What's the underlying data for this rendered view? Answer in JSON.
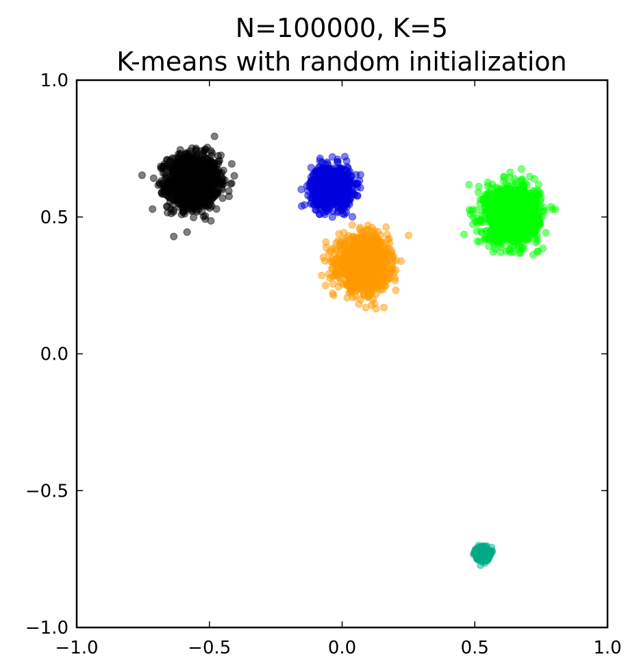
{
  "chart_data": {
    "type": "scatter",
    "title": "N=100000, K=5",
    "subtitle": "K-means with random initialization",
    "xlabel": "",
    "ylabel": "",
    "xlim": [
      -1.0,
      1.0
    ],
    "ylim": [
      -1.0,
      1.0
    ],
    "grid": false,
    "x_ticks": [
      "−1.0",
      "−0.5",
      "0.0",
      "0.5",
      "1.0"
    ],
    "x_tick_values": [
      -1.0,
      -0.5,
      0.0,
      0.5,
      1.0
    ],
    "y_ticks": [
      "1.0",
      "0.5",
      "0.0",
      "−0.5",
      "−1.0"
    ],
    "y_tick_values": [
      1.0,
      0.5,
      0.0,
      -0.5,
      -1.0
    ],
    "clusters": [
      {
        "color": "#000000",
        "center": [
          -0.56,
          0.63
        ],
        "spread": 0.048,
        "points": 1400
      },
      {
        "color": "#0000dd",
        "center": [
          -0.04,
          0.61
        ],
        "spread": 0.038,
        "points": 900
      },
      {
        "color": "#ff9900",
        "center": [
          0.08,
          0.33
        ],
        "spread": 0.047,
        "points": 1300
      },
      {
        "color": "#00ff00",
        "center": [
          0.64,
          0.51
        ],
        "spread": 0.05,
        "points": 1400
      },
      {
        "color": "#00aa88",
        "center": [
          0.53,
          -0.73
        ],
        "spread": 0.012,
        "points": 300
      }
    ],
    "marker_alpha": 0.5
  }
}
